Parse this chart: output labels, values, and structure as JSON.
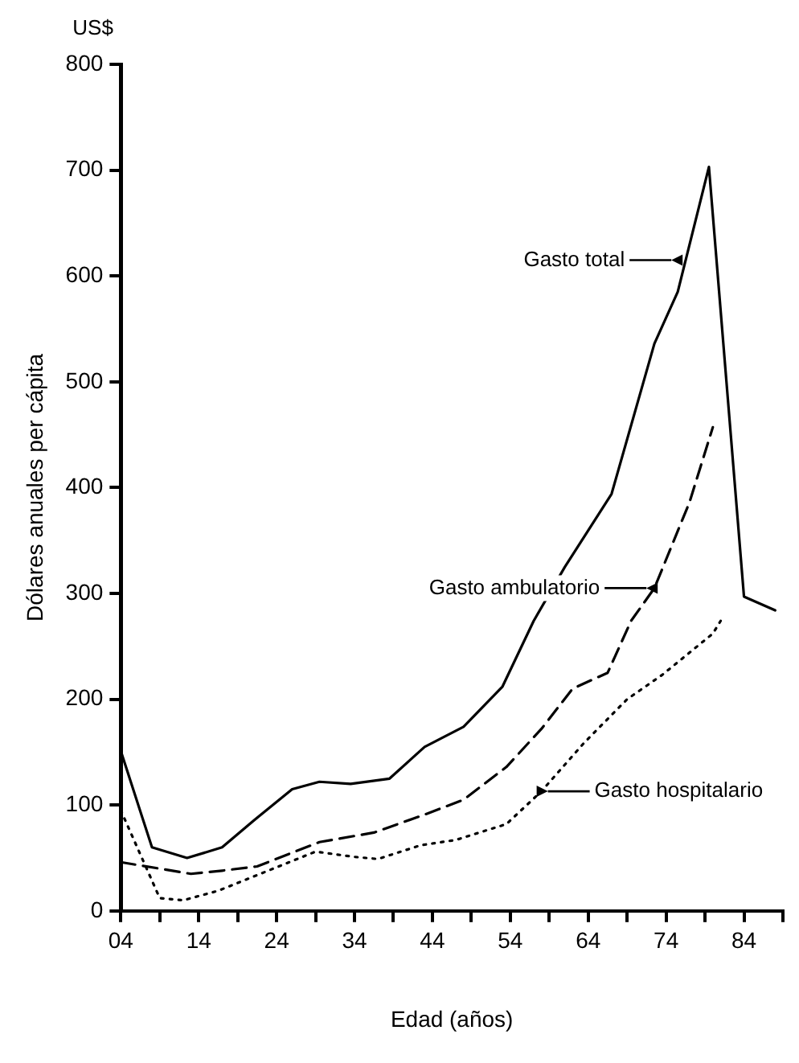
{
  "chart_data": {
    "type": "line",
    "xlabel": "Edad (años)",
    "ylabel": "Dólares anuales per cápita",
    "xlim": [
      4,
      89
    ],
    "ylim": [
      0,
      800
    ],
    "xticks": [
      {
        "value": 4,
        "label": "04"
      },
      {
        "value": 9,
        "label": null
      },
      {
        "value": 14,
        "label": "14"
      },
      {
        "value": 19,
        "label": null
      },
      {
        "value": 24,
        "label": "24"
      },
      {
        "value": 29,
        "label": null
      },
      {
        "value": 34,
        "label": "34"
      },
      {
        "value": 39,
        "label": null
      },
      {
        "value": 44,
        "label": "44"
      },
      {
        "value": 49,
        "label": null
      },
      {
        "value": 54,
        "label": "54"
      },
      {
        "value": 59,
        "label": null
      },
      {
        "value": 64,
        "label": "64"
      },
      {
        "value": 69,
        "label": null
      },
      {
        "value": 74,
        "label": "74"
      },
      {
        "value": 79,
        "label": null
      },
      {
        "value": 84,
        "label": "84"
      },
      {
        "value": 89,
        "label": null
      }
    ],
    "yticks": [
      0,
      100,
      200,
      300,
      400,
      500,
      600,
      700,
      800
    ],
    "grid": false,
    "legend": false,
    "marker": "none",
    "series": [
      {
        "color": "#000000",
        "line_style": "solid",
        "x": [
          4,
          8,
          12.5,
          17,
          21,
          26,
          29.5,
          33.5,
          38.5,
          43,
          48,
          53,
          57,
          61,
          67,
          72.5,
          75.5,
          79.5,
          84,
          88
        ],
        "values": [
          151,
          60,
          50,
          60,
          85,
          115,
          122,
          120,
          125,
          155,
          174,
          212,
          274,
          325,
          394,
          536,
          585,
          703,
          297,
          284
        ]
      },
      {
        "color": "#000000",
        "line_style": "dashed",
        "x": [
          4,
          13,
          17,
          21.5,
          26,
          29.5,
          36.5,
          43,
          48,
          53.5,
          58,
          62,
          66.5,
          69.5,
          72.5,
          77,
          80
        ],
        "values": [
          46,
          35,
          38,
          42,
          55,
          65,
          74,
          91,
          105,
          136,
          172,
          210,
          225,
          274,
          305,
          386,
          457
        ]
      },
      {
        "color": "#000000",
        "line_style": "dotted",
        "x": [
          4,
          5.5,
          9,
          12,
          16.5,
          29,
          34,
          37,
          42.5,
          47,
          53.5,
          58,
          63.5,
          69,
          73.5,
          80,
          81
        ],
        "values": [
          95,
          70,
          12,
          10,
          19,
          56,
          51,
          49,
          62,
          67,
          82,
          113,
          159,
          200,
          223,
          262,
          274
        ]
      }
    ],
    "annotations": [
      "US$",
      {
        "text": "Gasto total",
        "x": 75.5,
        "y": 615
      },
      {
        "text": "Gasto ambulatorio",
        "x": 72.3,
        "y": 305
      },
      {
        "text": "Gasto hospitalario",
        "x": 58,
        "y": 113
      }
    ]
  }
}
